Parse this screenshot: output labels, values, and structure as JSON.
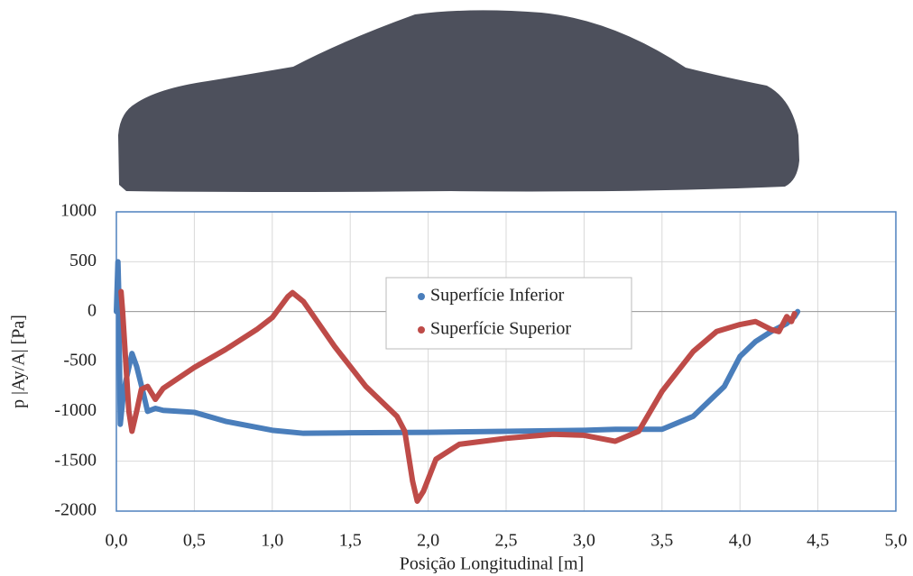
{
  "chart_data": {
    "type": "line",
    "x_label": "Posição Longitudinal [m]",
    "y_label": "p |Ay/A| [Pa]",
    "xlim": [
      0,
      5
    ],
    "ylim": [
      -2000,
      1000
    ],
    "xticks": [
      {
        "value": 0,
        "label": "0,0"
      },
      {
        "value": 0.5,
        "label": "0,5"
      },
      {
        "value": 1,
        "label": "1,0"
      },
      {
        "value": 1.5,
        "label": "1,5"
      },
      {
        "value": 2,
        "label": "2,0"
      },
      {
        "value": 2.5,
        "label": "2,5"
      },
      {
        "value": 3,
        "label": "3,0"
      },
      {
        "value": 3.5,
        "label": "3,5"
      },
      {
        "value": 4,
        "label": "4,0"
      },
      {
        "value": 4.5,
        "label": "4,5"
      },
      {
        "value": 5,
        "label": "5,0"
      }
    ],
    "yticks": [
      -2000,
      -1500,
      -1000,
      -500,
      0,
      500,
      1000
    ],
    "grid": true,
    "legend": "center",
    "series": [
      {
        "name": "Superfície Inferior",
        "color": "#4a7ebb",
        "x": [
          0.0,
          0.01,
          0.015,
          0.02,
          0.025,
          0.04,
          0.06,
          0.1,
          0.13,
          0.17,
          0.2,
          0.25,
          0.3,
          0.5,
          0.7,
          1.0,
          1.2,
          1.5,
          2.0,
          2.5,
          3.0,
          3.2,
          3.5,
          3.7,
          3.9,
          4.0,
          4.1,
          4.2,
          4.3,
          4.35,
          4.37
        ],
        "values": [
          0,
          500,
          200,
          -500,
          -1130,
          -900,
          -700,
          -420,
          -550,
          -800,
          -1000,
          -970,
          -990,
          -1010,
          -1100,
          -1190,
          -1220,
          -1215,
          -1210,
          -1200,
          -1190,
          -1180,
          -1180,
          -1050,
          -750,
          -450,
          -300,
          -200,
          -120,
          -50,
          0
        ]
      },
      {
        "name": "Superfície Superior",
        "color": "#be4b48",
        "x": [
          0.03,
          0.04,
          0.06,
          0.08,
          0.1,
          0.13,
          0.16,
          0.2,
          0.25,
          0.3,
          0.5,
          0.7,
          0.9,
          1.0,
          1.1,
          1.13,
          1.2,
          1.4,
          1.6,
          1.8,
          1.85,
          1.9,
          1.93,
          1.97,
          2.05,
          2.2,
          2.5,
          2.8,
          3.0,
          3.2,
          3.35,
          3.5,
          3.7,
          3.85,
          4.0,
          4.1,
          4.2,
          4.25,
          4.3,
          4.33,
          4.35
        ],
        "values": [
          200,
          0,
          -500,
          -1000,
          -1200,
          -1000,
          -780,
          -750,
          -880,
          -770,
          -560,
          -380,
          -180,
          -60,
          150,
          190,
          100,
          -350,
          -750,
          -1050,
          -1200,
          -1700,
          -1900,
          -1800,
          -1480,
          -1330,
          -1270,
          -1230,
          -1240,
          -1300,
          -1200,
          -800,
          -400,
          -200,
          -130,
          -100,
          -180,
          -200,
          -50,
          -100,
          -20
        ]
      }
    ]
  }
}
